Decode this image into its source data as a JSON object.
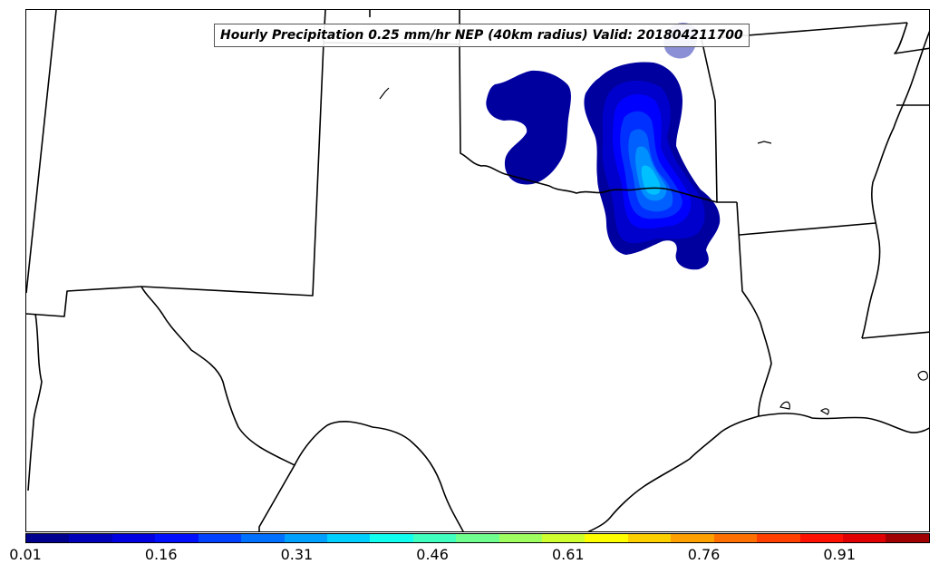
{
  "title": "Hourly Precipitation 0.25 mm/hr NEP (40km radius) Valid: 201804211700",
  "colorbar": {
    "tick_labels": [
      "0.01",
      "0.16",
      "0.31",
      "0.46",
      "0.61",
      "0.76",
      "0.91"
    ],
    "colors": [
      "#00008f",
      "#0000b8",
      "#0000e0",
      "#0010ff",
      "#0040ff",
      "#0070ff",
      "#00a0ff",
      "#00d0ff",
      "#10ffef",
      "#40ffbf",
      "#70ff8f",
      "#a0ff60",
      "#d0ff30",
      "#ffff00",
      "#ffd000",
      "#ffa000",
      "#ff7000",
      "#ff4000",
      "#ff1000",
      "#e00000",
      "#a00000"
    ]
  },
  "field_colors": {
    "level_1": "#00009f",
    "level_2": "#0000cd",
    "level_3": "#0000ff",
    "level_4": "#0030ff",
    "level_5": "#0060ff",
    "level_6": "#0090ff",
    "level_7": "#00c0ff",
    "faint": "#8a8fd6"
  }
}
